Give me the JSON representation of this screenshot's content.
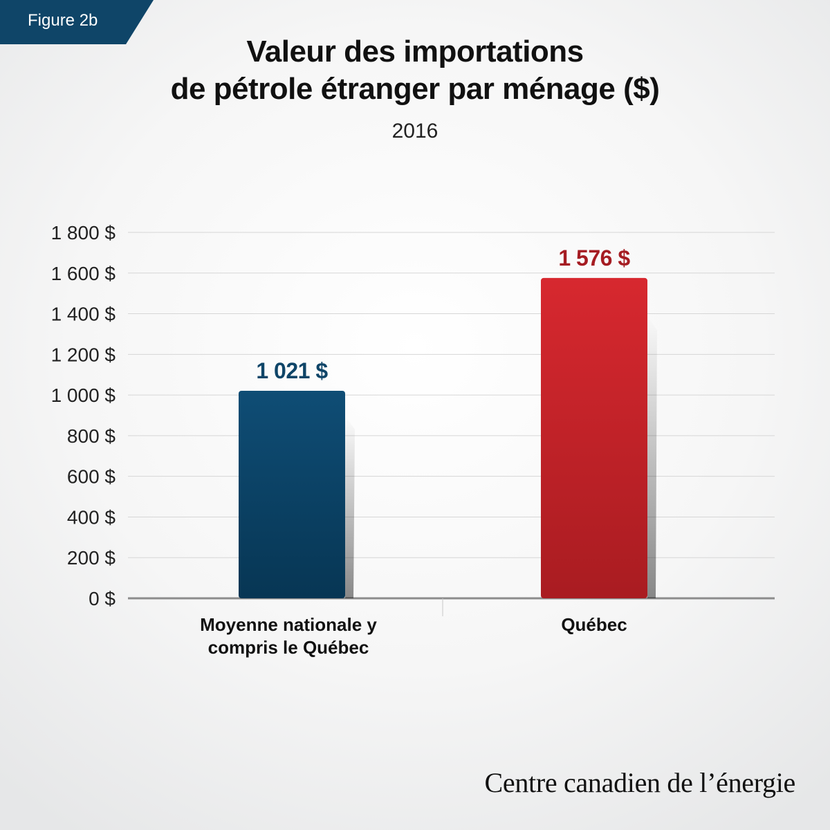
{
  "figure_label": "Figure 2b",
  "title_line1": "Valeur des importations",
  "title_line2": "de pétrole étranger par ménage ($)",
  "subtitle": "2016",
  "brand": "Centre canadien de l’énergie",
  "colors": {
    "tag": "#0f4568",
    "national": "#0f4d75",
    "quebec": "#d42a30",
    "national_label": "#0f4568",
    "quebec_label": "#a51c22",
    "grid": "#d6d6d6",
    "axis": "#8c8c8c"
  },
  "chart_data": {
    "type": "bar",
    "title": "Valeur des importations de pétrole étranger par ménage ($)",
    "subtitle": "2016",
    "categories": [
      [
        "Moyenne nationale y",
        "compris le Québec"
      ],
      [
        "Québec"
      ]
    ],
    "values": [
      1021,
      1576
    ],
    "value_labels": [
      "1 021 $",
      "1 576 $"
    ],
    "ylim": [
      0,
      1800
    ],
    "y_ticks": [
      0,
      200,
      400,
      600,
      800,
      1000,
      1200,
      1400,
      1600,
      1800
    ],
    "y_tick_labels": [
      "0 $",
      "200 $",
      "400 $",
      "600 $",
      "800 $",
      "1 000 $",
      "1 200 $",
      "1 400 $",
      "1 600 $",
      "1 800 $"
    ],
    "grid": true,
    "legend": "none"
  }
}
